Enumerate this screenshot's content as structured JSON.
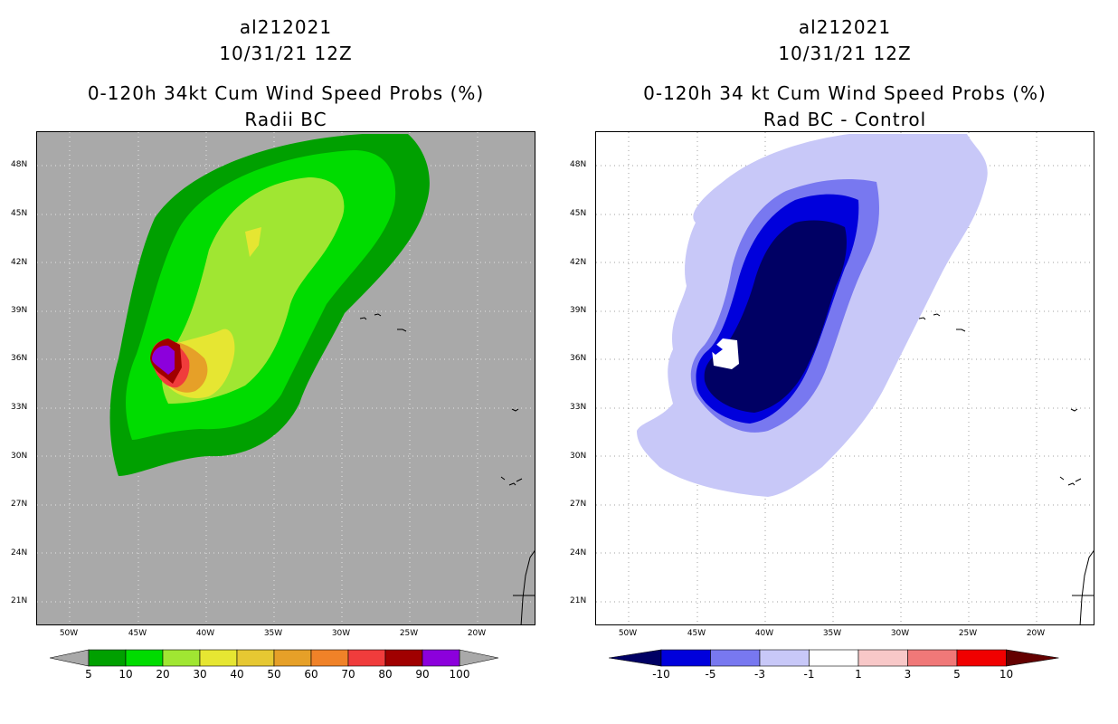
{
  "left": {
    "title": {
      "line1": "al212021",
      "line2": "10/31/21 12Z",
      "line3": "0-120h 34kt Cum Wind Speed Probs (%)",
      "line4": "Radii BC"
    },
    "colorbar": {
      "labels": [
        "5",
        "10",
        "20",
        "30",
        "40",
        "50",
        "60",
        "70",
        "80",
        "90",
        "100"
      ],
      "colors": [
        "#00a000",
        "#00dc00",
        "#a0e632",
        "#e6e632",
        "#e6c832",
        "#e6a028",
        "#f08228",
        "#f03c3c",
        "#a00000",
        "#8c00dc"
      ],
      "end_colors": [
        "#a9a9a9",
        "#a9a9a9"
      ]
    },
    "map_background": "#a9a9a9"
  },
  "right": {
    "title": {
      "line1": "al212021",
      "line2": "10/31/21 12Z",
      "line3": "0-120h 34 kt Cum Wind Speed Probs (%)",
      "line4": "Rad BC - Control"
    },
    "colorbar": {
      "labels": [
        "-10",
        "-5",
        "-3",
        "-1",
        "1",
        "3",
        "5",
        "10"
      ],
      "colors": [
        "#0000dc",
        "#7878f0",
        "#c8c8f8",
        "#ffffff",
        "#f8c8c8",
        "#f07878",
        "#f00000"
      ],
      "end_colors": [
        "#000064",
        "#640000"
      ]
    },
    "map_background": "#ffffff"
  },
  "axes": {
    "lat_labels": [
      "48N",
      "45N",
      "42N",
      "39N",
      "36N",
      "33N",
      "30N",
      "27N",
      "24N",
      "21N"
    ],
    "lon_labels": [
      "50W",
      "45W",
      "40W",
      "35W",
      "30W",
      "25W",
      "20W"
    ]
  }
}
